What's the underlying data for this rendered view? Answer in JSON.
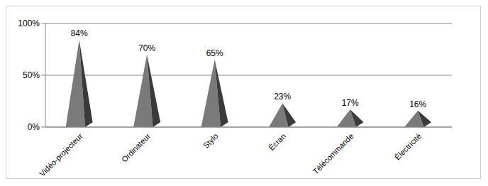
{
  "chart_data": {
    "type": "bar",
    "categories": [
      "Vidéo-projecteur",
      "Ordinateur",
      "Stylo",
      "Écran",
      "Télécommande",
      "Électricité"
    ],
    "values": [
      84,
      70,
      65,
      23,
      17,
      16
    ],
    "value_labels": [
      "84%",
      "70%",
      "65%",
      "23%",
      "17%",
      "16%"
    ],
    "color": "#7a7a7a",
    "ylim": [
      0,
      100
    ],
    "yticks": [
      {
        "value": 0,
        "label": "0%"
      },
      {
        "value": 50,
        "label": "50%"
      },
      {
        "value": 100,
        "label": "100%"
      }
    ],
    "grid": true,
    "data_labels": true
  }
}
